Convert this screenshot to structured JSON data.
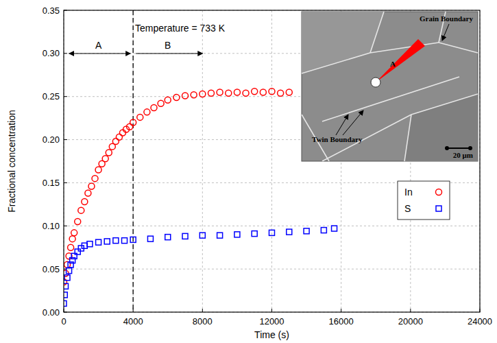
{
  "chart_data": {
    "type": "scatter",
    "x_label": "Time (s)",
    "y_label": "Fractional concentration",
    "annotations": [
      "Temperature = 733 K",
      "A",
      "B"
    ],
    "vlines": [
      4000
    ],
    "inset": {
      "texts": [
        "Grain Boundary",
        "Twin Boundary",
        "A",
        "20 μm"
      ]
    },
    "xlim": [
      0,
      24000
    ],
    "xticks": [
      0,
      4000,
      8000,
      12000,
      16000,
      20000,
      24000
    ],
    "ylim": [
      0,
      0.35
    ],
    "yticks": [
      {
        "value": 0,
        "label": "0.00"
      },
      {
        "value": 0.05,
        "label": "0.05"
      },
      {
        "value": 0.1,
        "label": "0.10"
      },
      {
        "value": 0.15,
        "label": "0.15"
      },
      {
        "value": 0.2,
        "label": "0.20"
      },
      {
        "value": 0.25,
        "label": "0.25"
      },
      {
        "value": 0.3,
        "label": "0.30"
      },
      {
        "value": 0.35,
        "label": "0.35"
      }
    ],
    "grid": true,
    "legend": "right",
    "series": [
      {
        "name": "In",
        "color": "#ff0000",
        "marker": "circle",
        "x": [
          0,
          100,
          200,
          300,
          400,
          500,
          600,
          800,
          1000,
          1200,
          1400,
          1600,
          1800,
          2000,
          2200,
          2400,
          2600,
          2800,
          3000,
          3200,
          3400,
          3600,
          3800,
          4000,
          4400,
          4800,
          5200,
          5600,
          6000,
          6500,
          7000,
          7500,
          8000,
          8500,
          9000,
          9500,
          10000,
          10500,
          11000,
          11500,
          12000,
          12500,
          13000
        ],
        "values": [
          0.035,
          0.045,
          0.055,
          0.065,
          0.075,
          0.085,
          0.092,
          0.105,
          0.118,
          0.128,
          0.138,
          0.146,
          0.155,
          0.165,
          0.172,
          0.178,
          0.185,
          0.192,
          0.198,
          0.203,
          0.208,
          0.212,
          0.215,
          0.22,
          0.226,
          0.232,
          0.237,
          0.242,
          0.246,
          0.249,
          0.251,
          0.252,
          0.253,
          0.254,
          0.255,
          0.254,
          0.255,
          0.254,
          0.256,
          0.255,
          0.256,
          0.254,
          0.255
        ]
      },
      {
        "name": "S",
        "color": "#0000ff",
        "marker": "square",
        "x": [
          0,
          50,
          100,
          200,
          300,
          400,
          500,
          600,
          800,
          1000,
          1200,
          1500,
          2000,
          2500,
          3000,
          3500,
          4000,
          5000,
          6000,
          7000,
          8000,
          9000,
          10000,
          11000,
          12000,
          13000,
          14000,
          15000,
          15600
        ],
        "values": [
          0.01,
          0.02,
          0.03,
          0.04,
          0.048,
          0.055,
          0.06,
          0.065,
          0.07,
          0.074,
          0.077,
          0.079,
          0.081,
          0.082,
          0.083,
          0.083,
          0.084,
          0.085,
          0.087,
          0.088,
          0.089,
          0.089,
          0.09,
          0.091,
          0.092,
          0.093,
          0.094,
          0.095,
          0.097
        ]
      }
    ]
  }
}
